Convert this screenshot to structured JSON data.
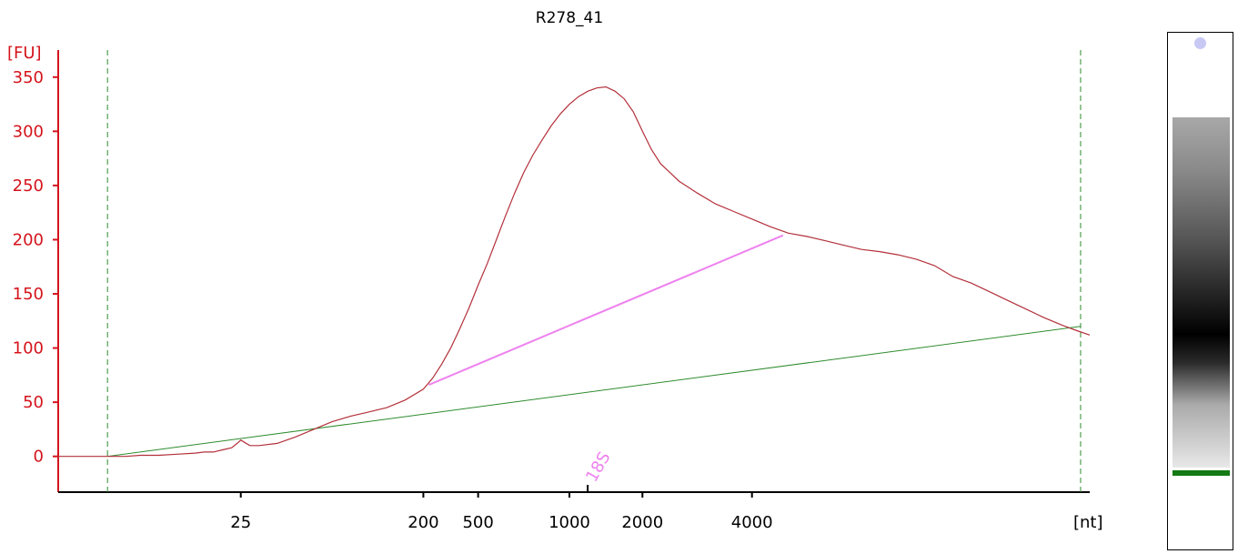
{
  "chart_data": {
    "type": "line",
    "title": "R278_41",
    "ylabel": "[FU]",
    "xlabel": "[nt]",
    "ylim": [
      -33,
      375
    ],
    "yticks": [
      0,
      50,
      100,
      150,
      200,
      250,
      300,
      350
    ],
    "xticks": [
      "25",
      "200",
      "500",
      "1000",
      "2000",
      "4000"
    ],
    "xtick_positions_seconds": [
      25.0,
      35.0,
      38.0,
      43.0,
      47.0,
      53.0
    ],
    "x_axis_seconds_range": [
      15.0,
      71.5
    ],
    "grid": false,
    "series": [
      {
        "color": "#b3303a",
        "x_seconds": [
          15.0,
          18.7,
          19.5,
          20.5,
          21.5,
          22.5,
          23.0,
          23.5,
          24.0,
          24.5,
          24.8,
          25.0,
          25.2,
          25.5,
          26.0,
          27.0,
          28.0,
          29.0,
          30.0,
          31.0,
          32.0,
          33.0,
          34.0,
          35.0,
          35.5,
          36.0,
          36.5,
          37.0,
          37.5,
          38.0,
          38.5,
          39.0,
          39.5,
          40.0,
          40.5,
          41.0,
          41.5,
          42.0,
          42.5,
          43.0,
          43.5,
          44.0,
          44.5,
          45.0,
          45.5,
          46.0,
          46.5,
          47.0,
          47.5,
          48.0,
          48.5,
          49.0,
          50.0,
          51.0,
          52.0,
          53.0,
          54.0,
          55.0,
          56.0,
          57.0,
          58.0,
          59.0,
          60.0,
          61.0,
          62.0,
          63.0,
          64.0,
          65.0,
          66.0,
          67.0,
          68.0,
          69.0,
          70.0,
          70.8,
          71.5
        ],
        "y": [
          0,
          0,
          1,
          1,
          2,
          3,
          4,
          4,
          6,
          8,
          12,
          15,
          13,
          10,
          10,
          12,
          18,
          25,
          32,
          37,
          41,
          45,
          52,
          62,
          72,
          85,
          100,
          118,
          137,
          158,
          178,
          200,
          222,
          243,
          262,
          278,
          292,
          305,
          316,
          325,
          332,
          337,
          340,
          341,
          337,
          330,
          318,
          300,
          283,
          270,
          262,
          254,
          243,
          233,
          226,
          219,
          212,
          206,
          203,
          199,
          195,
          191,
          189,
          186,
          182,
          176,
          166,
          160,
          152,
          144,
          136,
          128,
          121,
          116,
          112
        ]
      }
    ],
    "baseline": {
      "color": "#2e8b2e",
      "from": [
        17.7,
        0
      ],
      "to": [
        71.0,
        120
      ]
    },
    "fragment_line": {
      "color": "#ee82ee",
      "from": [
        35.3,
        66
      ],
      "to": [
        54.7,
        204
      ]
    },
    "region_markers_seconds": [
      17.7,
      71.0
    ],
    "marker": {
      "label": "18S",
      "x_seconds": 44.0,
      "color": "#ee82ee"
    }
  },
  "gel": {
    "band_color": "#000000",
    "marker_color": "#147a14",
    "dot_color": "#c8c8f5"
  }
}
